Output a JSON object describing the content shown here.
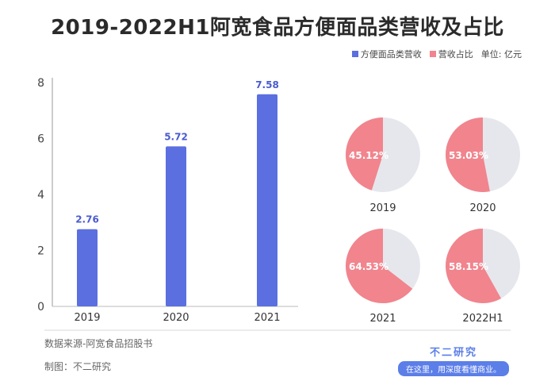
{
  "title": "2019-2022H1阿宽食品方便面品类营收及占比",
  "legend": {
    "revenue_label": "方便面品类营收",
    "share_label": "营收占比",
    "unit": "单位: 亿元"
  },
  "colors": {
    "bar": "#5b6fe0",
    "bar_label": "#4a5bd0",
    "pie_share": "#f1848d",
    "pie_rest": "#e6e7ec"
  },
  "chart_data": [
    {
      "type": "bar",
      "title": "",
      "categories": [
        "2019",
        "2020",
        "2021"
      ],
      "series": [
        {
          "name": "方便面品类营收",
          "values": [
            2.76,
            5.72,
            7.58
          ]
        }
      ],
      "value_labels": [
        "2.76",
        "5.72",
        "7.58"
      ],
      "ylim": [
        0,
        8
      ],
      "yticks": [
        "0",
        "2",
        "4",
        "6",
        "8"
      ],
      "xlabel": "",
      "ylabel": "",
      "grid": false
    },
    {
      "type": "pie",
      "title": "",
      "categories": [
        "2019",
        "2020",
        "2021",
        "2022H1"
      ],
      "series": [
        {
          "name": "营收占比",
          "values": [
            45.12,
            53.03,
            64.53,
            58.15
          ]
        }
      ],
      "value_labels": [
        "45.12%",
        "53.03%",
        "64.53%",
        "58.15%"
      ]
    }
  ],
  "footer": {
    "source": "数据来源-阿宽食品招股书",
    "maker": "制图：不二研究",
    "brand_name": "不二研究",
    "brand_slogan": "在这里，用深度看懂商业。"
  }
}
